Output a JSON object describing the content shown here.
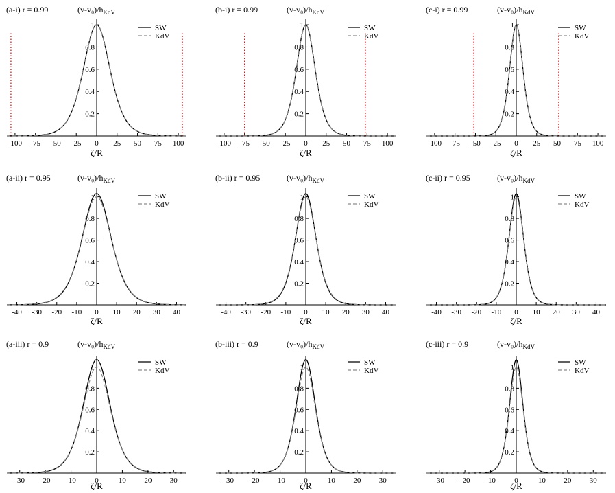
{
  "figure": {
    "x_axis_label": "ζ/R",
    "y_axis_title": "(v-v₀)/h",
    "y_axis_title_sub": "KdV",
    "legend": [
      "SW",
      "KdV"
    ],
    "panel_label_template": "{id} r = {r}"
  },
  "colors": {
    "sw": "#000000",
    "kdv": "#8c8c8c",
    "marker": "#e00000",
    "axis": "#000000"
  },
  "chart_data": [
    {
      "type": "line",
      "panel": "a-i",
      "r_label": "(a-i) r = 0.99",
      "r": 0.99,
      "xlim": [
        -110,
        110
      ],
      "xticks": [
        -100,
        -75,
        -50,
        -25,
        0,
        25,
        50,
        75,
        100
      ],
      "yticks": [
        0.2,
        0.4,
        0.6,
        0.8,
        1
      ],
      "ylim": [
        0,
        1.05
      ],
      "series": [
        {
          "name": "SW",
          "amplitude": 1.0,
          "width": 22
        },
        {
          "name": "KdV",
          "amplitude": 1.0,
          "width": 22
        }
      ],
      "markers_x": [
        -105,
        105
      ]
    },
    {
      "type": "line",
      "panel": "b-i",
      "r_label": "(b-i) r = 0.99",
      "r": 0.99,
      "xlim": [
        -110,
        110
      ],
      "xticks": [
        -100,
        -75,
        -50,
        -25,
        0,
        25,
        50,
        75,
        100
      ],
      "yticks": [
        0.2,
        0.4,
        0.6,
        0.8,
        1
      ],
      "ylim": [
        0,
        1.05
      ],
      "series": [
        {
          "name": "SW",
          "amplitude": 1.0,
          "width": 15.5
        },
        {
          "name": "KdV",
          "amplitude": 1.0,
          "width": 15.5
        }
      ],
      "markers_x": [
        -75,
        73
      ]
    },
    {
      "type": "line",
      "panel": "c-i",
      "r_label": "(c-i) r = 0.99",
      "r": 0.99,
      "xlim": [
        -110,
        110
      ],
      "xticks": [
        -100,
        -75,
        -50,
        -25,
        0,
        25,
        50,
        75,
        100
      ],
      "yticks": [
        0.2,
        0.4,
        0.6,
        0.8,
        1
      ],
      "ylim": [
        0,
        1.05
      ],
      "series": [
        {
          "name": "SW",
          "amplitude": 1.0,
          "width": 11
        },
        {
          "name": "KdV",
          "amplitude": 1.0,
          "width": 11
        }
      ],
      "markers_x": [
        -52,
        52
      ]
    },
    {
      "type": "line",
      "panel": "a-ii",
      "r_label": "(a-ii) r = 0.95",
      "r": 0.95,
      "xlim": [
        -45,
        45
      ],
      "xticks": [
        -40,
        -30,
        -20,
        -10,
        0,
        10,
        20,
        30,
        40
      ],
      "yticks": [
        0.2,
        0.4,
        0.6,
        0.8,
        1
      ],
      "ylim": [
        0,
        1.08
      ],
      "series": [
        {
          "name": "SW",
          "amplitude": 1.03,
          "width": 9.8
        },
        {
          "name": "KdV",
          "amplitude": 1.0,
          "width": 10
        }
      ],
      "markers_x": []
    },
    {
      "type": "line",
      "panel": "b-ii",
      "r_label": "(b-ii) r = 0.95",
      "r": 0.95,
      "xlim": [
        -45,
        45
      ],
      "xticks": [
        -40,
        -30,
        -20,
        -10,
        0,
        10,
        20,
        30,
        40
      ],
      "yticks": [
        0.2,
        0.4,
        0.6,
        0.8,
        1
      ],
      "ylim": [
        0,
        1.08
      ],
      "series": [
        {
          "name": "SW",
          "amplitude": 1.03,
          "width": 6.9
        },
        {
          "name": "KdV",
          "amplitude": 1.0,
          "width": 7.1
        }
      ],
      "markers_x": []
    },
    {
      "type": "line",
      "panel": "c-ii",
      "r_label": "(c-ii) r = 0.95",
      "r": 0.95,
      "xlim": [
        -45,
        45
      ],
      "xticks": [
        -40,
        -30,
        -20,
        -10,
        0,
        10,
        20,
        30,
        40
      ],
      "yticks": [
        0.2,
        0.4,
        0.6,
        0.8,
        1
      ],
      "ylim": [
        0,
        1.08
      ],
      "series": [
        {
          "name": "SW",
          "amplitude": 1.03,
          "width": 4.9
        },
        {
          "name": "KdV",
          "amplitude": 1.0,
          "width": 5.0
        }
      ],
      "markers_x": []
    },
    {
      "type": "line",
      "panel": "a-iii",
      "r_label": "(a-iii) r = 0.9",
      "r": 0.9,
      "xlim": [
        -35,
        35
      ],
      "xticks": [
        -30,
        -20,
        -10,
        0,
        10,
        20,
        30
      ],
      "yticks": [
        0.2,
        0.4,
        0.6,
        0.8,
        1
      ],
      "ylim": [
        0,
        1.1
      ],
      "series": [
        {
          "name": "SW",
          "amplitude": 1.07,
          "width": 7.0
        },
        {
          "name": "KdV",
          "amplitude": 1.0,
          "width": 7.2
        }
      ],
      "markers_x": []
    },
    {
      "type": "line",
      "panel": "b-iii",
      "r_label": "(b-iii) r = 0.9",
      "r": 0.9,
      "xlim": [
        -35,
        35
      ],
      "xticks": [
        -30,
        -20,
        -10,
        0,
        10,
        20,
        30
      ],
      "yticks": [
        0.2,
        0.4,
        0.6,
        0.8,
        1
      ],
      "ylim": [
        0,
        1.1
      ],
      "series": [
        {
          "name": "SW",
          "amplitude": 1.07,
          "width": 5.0
        },
        {
          "name": "KdV",
          "amplitude": 1.0,
          "width": 5.1
        }
      ],
      "markers_x": []
    },
    {
      "type": "line",
      "panel": "c-iii",
      "r_label": "(c-iii) r = 0.9",
      "r": 0.9,
      "xlim": [
        -35,
        35
      ],
      "xticks": [
        -30,
        -20,
        -10,
        0,
        10,
        20,
        30
      ],
      "yticks": [
        0.2,
        0.4,
        0.6,
        0.8,
        1
      ],
      "ylim": [
        0,
        1.1
      ],
      "series": [
        {
          "name": "SW",
          "amplitude": 1.07,
          "width": 3.5
        },
        {
          "name": "KdV",
          "amplitude": 1.0,
          "width": 3.6
        }
      ],
      "markers_x": []
    }
  ]
}
